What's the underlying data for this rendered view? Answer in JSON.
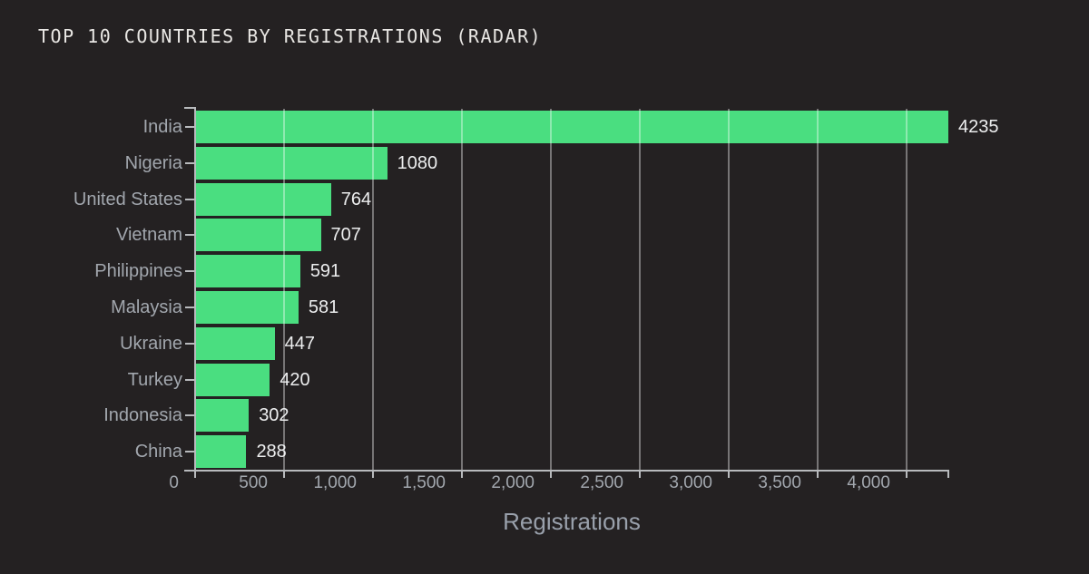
{
  "title": "TOP 10 COUNTRIES BY REGISTRATIONS (RADAR)",
  "chart_data": {
    "type": "bar",
    "orientation": "horizontal",
    "title": "TOP 10 COUNTRIES BY REGISTRATIONS (RADAR)",
    "categories": [
      "India",
      "Nigeria",
      "United States",
      "Vietnam",
      "Philippines",
      "Malaysia",
      "Ukraine",
      "Turkey",
      "Indonesia",
      "China"
    ],
    "values": [
      4235,
      1080,
      764,
      707,
      591,
      581,
      447,
      420,
      302,
      288
    ],
    "value_labels": [
      "4235",
      "1080",
      "764",
      "707",
      "591",
      "581",
      "447",
      "420",
      "302",
      "288"
    ],
    "xlabel": "Registrations",
    "ylabel": "",
    "xlim": [
      0,
      4235
    ],
    "xticks": [
      0,
      500,
      1000,
      1500,
      2000,
      2500,
      3000,
      3500,
      4000
    ],
    "xtick_labels": [
      "0",
      "500",
      "1,000",
      "1,500",
      "2,000",
      "2,500",
      "3,000",
      "3,500",
      "4,000"
    ],
    "grid": true,
    "gridlines_over_bars": true,
    "legend": false,
    "colors": {
      "background": "#242122",
      "bar": "#4ade80",
      "gridline": "rgba(255,255,255,0.38)",
      "axis": "#b8babd",
      "category_label": "#a2a7ae",
      "tick_label": "#a2a7ae",
      "value_label": "#edeeef",
      "title": "#e9e7e4",
      "xlabel": "#99a0ab"
    }
  }
}
